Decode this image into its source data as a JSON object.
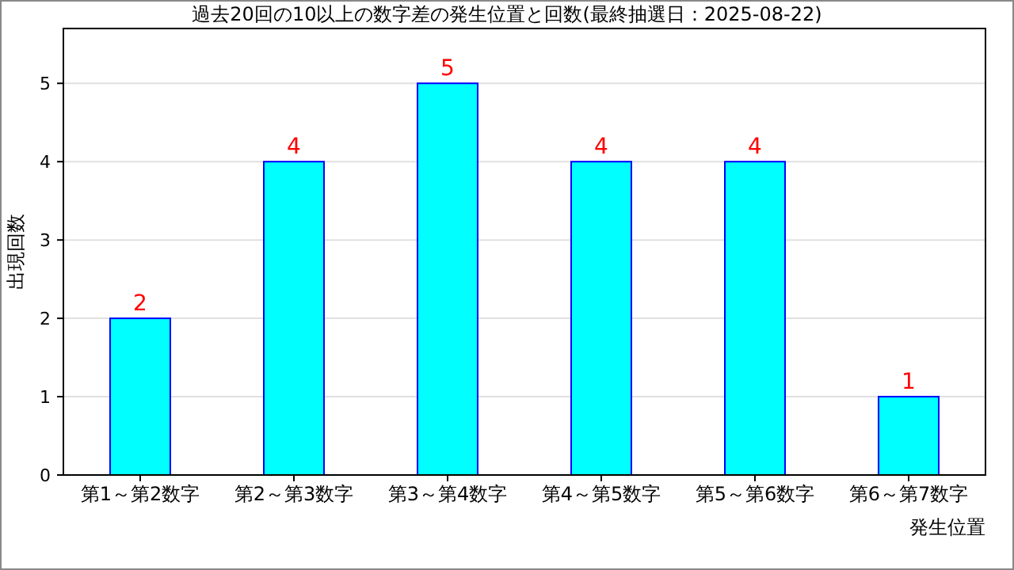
{
  "chart_data": {
    "type": "bar",
    "title": "過去20回の10以上の数字差の発生位置と回数(最終抽選日：2025-08-22)",
    "xlabel": "発生位置",
    "ylabel": "出現回数",
    "categories": [
      "第1～第2数字",
      "第2～第3数字",
      "第3～第4数字",
      "第4～第5数字",
      "第5～第6数字",
      "第6～第7数字"
    ],
    "values": [
      2,
      4,
      5,
      4,
      4,
      1
    ],
    "color": "#00ffff",
    "ylim": [
      0,
      5.7
    ],
    "yticks": [
      0,
      1,
      2,
      3,
      4,
      5
    ],
    "grid": "y",
    "data_labels": true
  }
}
